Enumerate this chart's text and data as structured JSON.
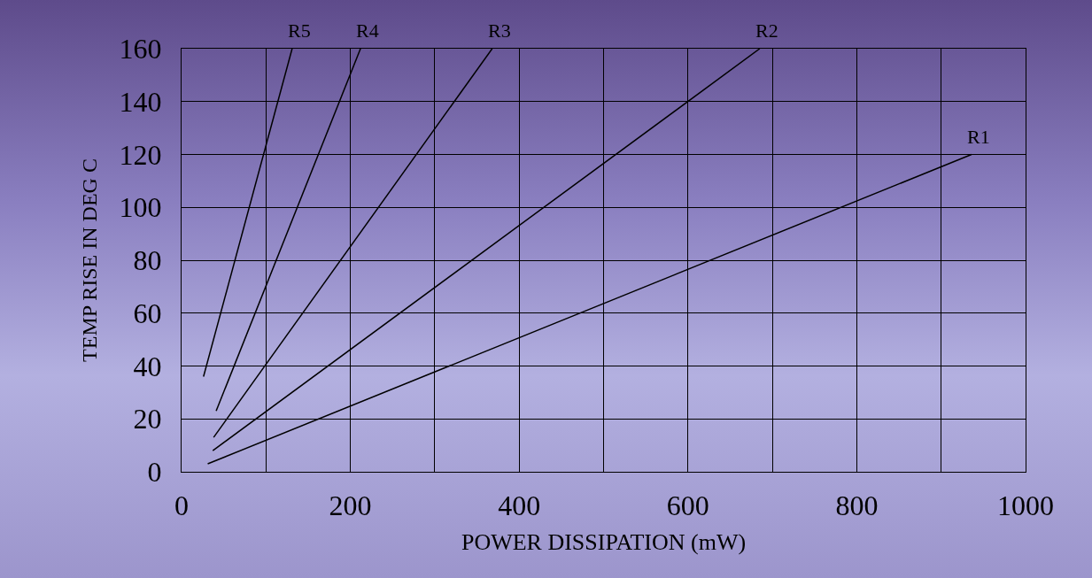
{
  "chart_data": {
    "type": "line",
    "xlabel": "POWER DISSIPATION (mW)",
    "ylabel": "TEMP RISE IN DEG C",
    "series": [
      {
        "name": "R5",
        "color": "#000000",
        "x": [
          26,
          131
        ],
        "values": [
          36,
          160
        ]
      },
      {
        "name": "R4",
        "color": "#000000",
        "x": [
          41,
          212
        ],
        "values": [
          23,
          160
        ]
      },
      {
        "name": "R3",
        "color": "#000000",
        "x": [
          38,
          368
        ],
        "values": [
          13,
          160
        ]
      },
      {
        "name": "R2",
        "color": "#000000",
        "x": [
          37,
          685
        ],
        "values": [
          8,
          160
        ]
      },
      {
        "name": "R1",
        "color": "#000000",
        "x": [
          31,
          936
        ],
        "values": [
          3,
          120
        ]
      }
    ],
    "xlim": [
      0,
      1000
    ],
    "ylim": [
      0,
      160
    ],
    "xticks": [
      0,
      {
        "value": 100,
        "label": null
      },
      200,
      {
        "value": 300,
        "label": null
      },
      400,
      {
        "value": 500,
        "label": null
      },
      600,
      {
        "value": 700,
        "label": null
      },
      800,
      {
        "value": 900,
        "label": null
      },
      1000
    ],
    "yticks": [
      0,
      20,
      40,
      60,
      80,
      100,
      120,
      140,
      160
    ],
    "grid": true,
    "legend": false,
    "marker": "none",
    "line_style": "solid"
  }
}
